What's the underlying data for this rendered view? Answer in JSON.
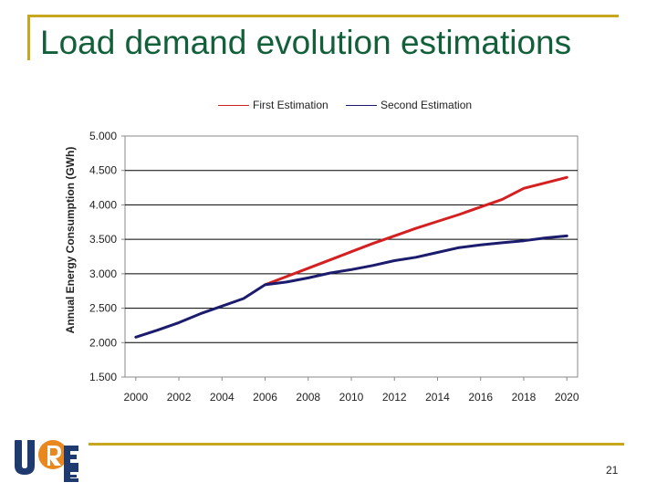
{
  "slide": {
    "title": "Load demand evolution estimations",
    "page_number": "21",
    "logo_text": "UREE",
    "accent_color": "#c7a71e",
    "title_color": "#12603a"
  },
  "chart_data": {
    "type": "line",
    "title": "",
    "xlabel": "",
    "ylabel": "Annual Energy Consumption (GWh)",
    "xlim": [
      1999.5,
      2020.5
    ],
    "ylim": [
      1500,
      5000
    ],
    "xticks": [
      2000,
      2002,
      2004,
      2006,
      2008,
      2010,
      2012,
      2014,
      2016,
      2018,
      2020
    ],
    "yticks": [
      1500,
      2000,
      2500,
      3000,
      3500,
      4000,
      4500,
      5000
    ],
    "ytick_labels": [
      "1.500",
      "2.000",
      "2.500",
      "3.000",
      "3.500",
      "4.000",
      "4.500",
      "5.000"
    ],
    "grid": "horizontal",
    "legend_position": "top",
    "series": [
      {
        "name": "First Estimation",
        "color": "#d42020",
        "x": [
          2006,
          2007,
          2008,
          2009,
          2010,
          2011,
          2012,
          2013,
          2014,
          2015,
          2016,
          2017,
          2018,
          2019,
          2020
        ],
        "values": [
          2840,
          2960,
          3080,
          3200,
          3320,
          3440,
          3550,
          3660,
          3760,
          3860,
          3970,
          4080,
          4240,
          4320,
          4400
        ]
      },
      {
        "name": "Second Estimation",
        "color": "#1c1c6e",
        "x": [
          2000,
          2001,
          2002,
          2003,
          2004,
          2005,
          2006,
          2007,
          2008,
          2009,
          2010,
          2011,
          2012,
          2013,
          2014,
          2015,
          2016,
          2017,
          2018,
          2019,
          2020
        ],
        "values": [
          2080,
          2180,
          2290,
          2420,
          2530,
          2640,
          2840,
          2880,
          2940,
          3010,
          3060,
          3120,
          3190,
          3240,
          3310,
          3380,
          3420,
          3450,
          3480,
          3520,
          3550
        ]
      }
    ]
  }
}
